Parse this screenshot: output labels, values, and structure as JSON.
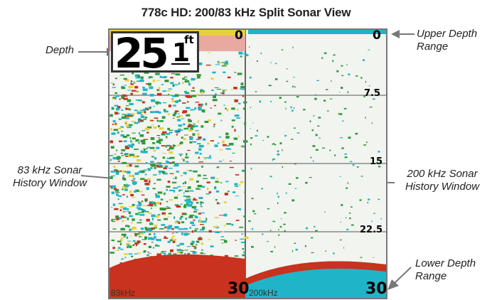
{
  "title": "778c HD: 200/83 kHz Split Sonar View",
  "depth_display": {
    "integer": "25",
    "decimal": "1",
    "unit": "ft"
  },
  "left_panel": {
    "frequency": "83kHz",
    "top_depth": "0",
    "bottom_depth": "30"
  },
  "right_panel": {
    "frequency": "200kHz",
    "top_depth": "0",
    "bottom_depth": "30",
    "ticks": [
      "7.5",
      "15",
      "22.5"
    ]
  },
  "callouts": {
    "depth": "Depth",
    "upper_depth_range": [
      "Upper Depth",
      "Range"
    ],
    "history_83": [
      "83 kHz Sonar",
      "History Window"
    ],
    "history_200": [
      "200 kHz Sonar",
      "History Window"
    ],
    "lower_depth_range": [
      "Lower Depth",
      "Range"
    ]
  },
  "colors": {
    "bottom_red": "#c8321e",
    "echo_yellow": "#e8d23a",
    "echo_green": "#2c9a3a",
    "echo_cyan": "#20b4c8",
    "background": "#f2f4ef"
  }
}
